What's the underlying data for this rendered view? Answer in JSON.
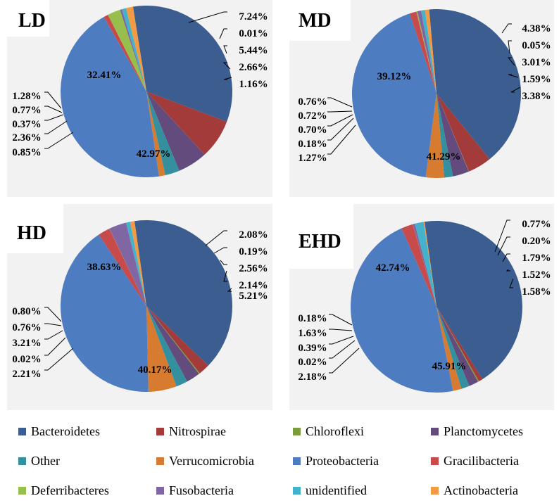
{
  "chart_data": [
    {
      "type": "pie",
      "title": "LD",
      "slices": [
        {
          "name": "Bacteroidetes",
          "value": 32.41
        },
        {
          "name": "Nitrospirae",
          "value": 7.24
        },
        {
          "name": "Chloroflexi",
          "value": 0.01
        },
        {
          "name": "Planctomycetes",
          "value": 5.44
        },
        {
          "name": "Other",
          "value": 2.66
        },
        {
          "name": "Verrucomicrobia",
          "value": 1.16
        },
        {
          "name": "Proteobacteria",
          "value": 42.97
        },
        {
          "name": "Gracilibacteria",
          "value": 0.85
        },
        {
          "name": "Deferribacteres",
          "value": 2.36
        },
        {
          "name": "Fusobacteria",
          "value": 0.37
        },
        {
          "name": "unidentified",
          "value": 0.77
        },
        {
          "name": "Actinobacteria",
          "value": 1.28
        }
      ],
      "labels": [
        "32.41%",
        "7.24%",
        "0.01%",
        "5.44%",
        "2.66%",
        "1.16%",
        "42.97%",
        "0.85%",
        "2.36%",
        "0.37%",
        "0.77%",
        "1.28%"
      ]
    },
    {
      "type": "pie",
      "title": "MD",
      "slices": [
        {
          "name": "Bacteroidetes",
          "value": 39.12
        },
        {
          "name": "Nitrospirae",
          "value": 4.38
        },
        {
          "name": "Chloroflexi",
          "value": 0.05
        },
        {
          "name": "Planctomycetes",
          "value": 3.01
        },
        {
          "name": "Other",
          "value": 1.59
        },
        {
          "name": "Verrucomicrobia",
          "value": 3.38
        },
        {
          "name": "Proteobacteria",
          "value": 41.29
        },
        {
          "name": "Gracilibacteria",
          "value": 1.27
        },
        {
          "name": "Deferribacteres",
          "value": 0.18
        },
        {
          "name": "Fusobacteria",
          "value": 0.7
        },
        {
          "name": "unidentified",
          "value": 0.72
        },
        {
          "name": "Actinobacteria",
          "value": 0.76
        }
      ],
      "labels": [
        "39.12%",
        "4.38%",
        "0.05%",
        "3.01%",
        "1.59%",
        "3.38%",
        "41.29%",
        "1.27%",
        "0.18%",
        "0.70%",
        "0.72%",
        "0.76%"
      ]
    },
    {
      "type": "pie",
      "title": "HD",
      "slices": [
        {
          "name": "Bacteroidetes",
          "value": 38.63
        },
        {
          "name": "Nitrospirae",
          "value": 2.08
        },
        {
          "name": "Chloroflexi",
          "value": 0.19
        },
        {
          "name": "Planctomycetes",
          "value": 2.56
        },
        {
          "name": "Other",
          "value": 2.14
        },
        {
          "name": "Verrucomicrobia",
          "value": 5.21
        },
        {
          "name": "Proteobacteria",
          "value": 40.17
        },
        {
          "name": "Gracilibacteria",
          "value": 2.21
        },
        {
          "name": "Deferribacteres",
          "value": 0.02
        },
        {
          "name": "Fusobacteria",
          "value": 3.21
        },
        {
          "name": "unidentified",
          "value": 0.76
        },
        {
          "name": "Actinobacteria",
          "value": 0.8
        }
      ],
      "labels": [
        "38.63%",
        "2.08%",
        "0.19%",
        "2.56%",
        "2.14%",
        "5.21%",
        "40.17%",
        "2.21%",
        "0.02%",
        "3.21%",
        "0.76%",
        "0.80%"
      ]
    },
    {
      "type": "pie",
      "title": "EHD",
      "slices": [
        {
          "name": "Bacteroidetes",
          "value": 42.74
        },
        {
          "name": "Nitrospirae",
          "value": 0.77
        },
        {
          "name": "Chloroflexi",
          "value": 0.2
        },
        {
          "name": "Planctomycetes",
          "value": 1.79
        },
        {
          "name": "Other",
          "value": 1.52
        },
        {
          "name": "Verrucomicrobia",
          "value": 1.58
        },
        {
          "name": "Proteobacteria",
          "value": 45.91
        },
        {
          "name": "Gracilibacteria",
          "value": 2.18
        },
        {
          "name": "Deferribacteres",
          "value": 0.02
        },
        {
          "name": "Fusobacteria",
          "value": 0.39
        },
        {
          "name": "unidentified",
          "value": 1.63
        },
        {
          "name": "Actinobacteria",
          "value": 0.18
        }
      ],
      "labels": [
        "42.74%",
        "0.77%",
        "0.20%",
        "1.79%",
        "1.52%",
        "1.58%",
        "45.91%",
        "2.18%",
        "0.02%",
        "0.39%",
        "1.63%",
        "0.18%"
      ]
    }
  ],
  "legend": [
    {
      "name": "Bacteroidetes",
      "color": "#3c5d8f"
    },
    {
      "name": "Nitrospirae",
      "color": "#a23b3a"
    },
    {
      "name": "Chloroflexi",
      "color": "#7d9a3c"
    },
    {
      "name": "Planctomycetes",
      "color": "#634b7e"
    },
    {
      "name": "Other",
      "color": "#34909e"
    },
    {
      "name": "Verrucomicrobia",
      "color": "#d67b2f"
    },
    {
      "name": "Proteobacteria",
      "color": "#4e7cc0"
    },
    {
      "name": "Gracilibacteria",
      "color": "#c64b4a"
    },
    {
      "name": "Deferribacteres",
      "color": "#98bf4d"
    },
    {
      "name": "Fusobacteria",
      "color": "#8066a2"
    },
    {
      "name": "unidentified",
      "color": "#45b2cc"
    },
    {
      "name": "Actinobacteria",
      "color": "#f39a44"
    }
  ]
}
